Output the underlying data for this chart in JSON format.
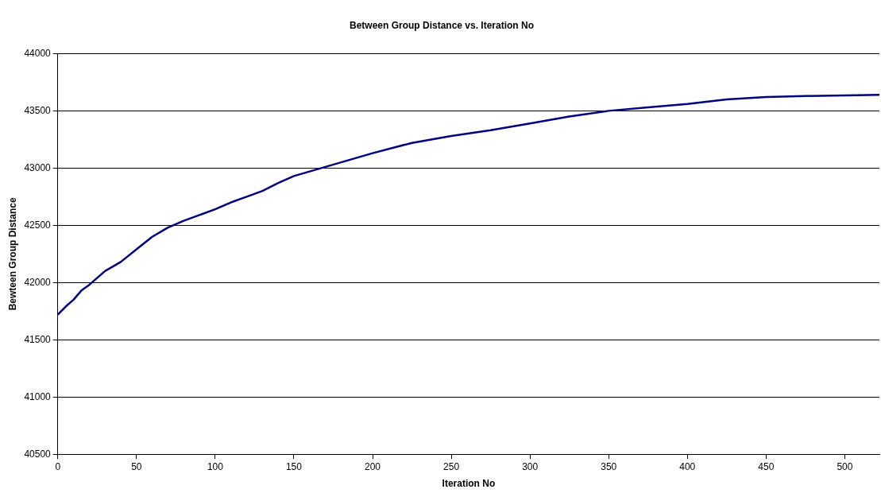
{
  "chart_data": {
    "type": "line",
    "title": "Between Group Distance vs. Iteration No",
    "xlabel": "Iteration No",
    "ylabel": "Bewteen Group Distance",
    "series": [
      {
        "color": "#000080",
        "x": [
          0,
          5,
          10,
          15,
          20,
          30,
          40,
          50,
          60,
          70,
          80,
          90,
          100,
          110,
          120,
          130,
          140,
          150,
          160,
          170,
          180,
          190,
          200,
          225,
          250,
          275,
          300,
          325,
          350,
          375,
          400,
          425,
          450,
          475,
          500,
          522
        ],
        "values": [
          41720,
          41790,
          41850,
          41930,
          41980,
          42100,
          42180,
          42290,
          42400,
          42480,
          42540,
          42590,
          42640,
          42700,
          42750,
          42800,
          42870,
          42930,
          42970,
          43010,
          43050,
          43090,
          43130,
          43220,
          43280,
          43330,
          43390,
          43450,
          43500,
          43530,
          43560,
          43600,
          43620,
          43630,
          43635,
          43640
        ]
      }
    ],
    "xlim": [
      0,
      522
    ],
    "xticks": [
      0,
      50,
      100,
      150,
      200,
      250,
      300,
      350,
      400,
      450,
      500
    ],
    "ylim": [
      40500,
      44000
    ],
    "yticks": [
      40500,
      41000,
      41500,
      42000,
      42500,
      43000,
      43500,
      44000
    ],
    "grid": "y",
    "legend": false,
    "marker": "none",
    "line_style": "solid"
  }
}
